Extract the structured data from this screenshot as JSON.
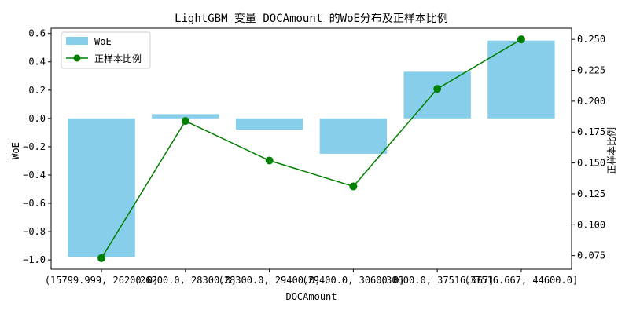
{
  "chart_data": {
    "type": "bar",
    "title": "LightGBM 变量 DOCAmount 的WoE分布及正样本比例",
    "xlabel": "DOCAmount",
    "ylabel": "WoE",
    "y2label": "正样本比例",
    "categories": [
      "(15799.999, 26200.0]",
      "(26200.0, 28300.0]",
      "(28300.0, 29400.0]",
      "(29400.0, 30600.0]",
      "(30600.0, 37516.667]",
      "(37516.667, 44600.0]"
    ],
    "series": [
      {
        "name": "WoE",
        "type": "bar",
        "axis": "left",
        "color": "#87ceeb",
        "values": [
          -0.98,
          0.03,
          -0.08,
          -0.25,
          0.33,
          0.55
        ]
      },
      {
        "name": "正样本比例",
        "type": "line",
        "axis": "right",
        "color": "#008000",
        "values": [
          0.073,
          0.184,
          0.152,
          0.131,
          0.21,
          0.25
        ]
      }
    ],
    "ylim": [
      -1.066,
      0.637
    ],
    "y2lim": [
      0.064,
      0.259
    ],
    "yticks": [
      -1.0,
      -0.8,
      -0.6,
      -0.4,
      -0.2,
      0.0,
      0.2,
      0.4,
      0.6
    ],
    "y2ticks": [
      0.075,
      0.1,
      0.125,
      0.15,
      0.175,
      0.2,
      0.225,
      0.25
    ],
    "legend": "upper-left",
    "grid": false
  }
}
